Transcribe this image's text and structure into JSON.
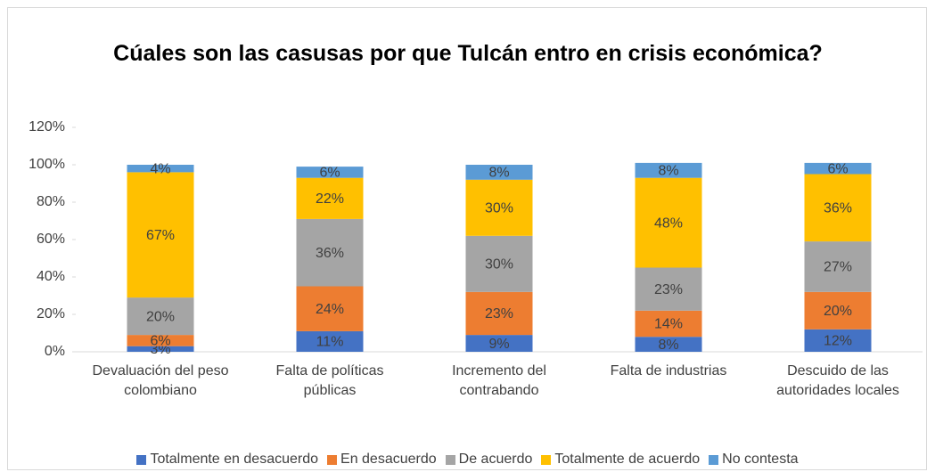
{
  "chart_data": {
    "type": "stacked_bar",
    "title": "Cúales son las casusas por que Tulcán entro en crisis económica?",
    "categories": [
      "Devaluación del peso colombiano",
      "Falta de políticas públicas",
      "Incremento del contrabando",
      "Falta de industrias",
      "Descuido de las autoridades locales"
    ],
    "series": [
      {
        "name": "Totalmente en desacuerdo",
        "color": "#4472c4",
        "values": [
          3,
          11,
          9,
          8,
          12
        ],
        "value_labels": [
          "3%",
          "11%",
          "9%",
          "8%",
          "12%"
        ]
      },
      {
        "name": "En desacuerdo",
        "color": "#ed7d31",
        "values": [
          6,
          24,
          23,
          14,
          20
        ],
        "value_labels": [
          "6%",
          "24%",
          "23%",
          "14%",
          "20%"
        ]
      },
      {
        "name": "De acuerdo",
        "color": "#a5a5a5",
        "values": [
          20,
          36,
          30,
          23,
          27
        ],
        "value_labels": [
          "20%",
          "36%",
          "30%",
          "23%",
          "27%"
        ]
      },
      {
        "name": "Totalmente de acuerdo",
        "color": "#ffc000",
        "values": [
          67,
          22,
          30,
          48,
          36
        ],
        "value_labels": [
          "67%",
          "22%",
          "30%",
          "48%",
          "36%"
        ]
      },
      {
        "name": "No contesta",
        "color": "#5b9bd5",
        "values": [
          4,
          6,
          8,
          8,
          6
        ],
        "value_labels": [
          "4%",
          "6%",
          "8%",
          "8%",
          "6%"
        ]
      }
    ],
    "ylim": [
      0,
      120
    ],
    "yticks": [
      {
        "value": 0,
        "label": "0%"
      },
      {
        "value": 20,
        "label": "20%"
      },
      {
        "value": 40,
        "label": "40%"
      },
      {
        "value": 60,
        "label": "60%"
      },
      {
        "value": 80,
        "label": "80%"
      },
      {
        "value": 100,
        "label": "100%"
      },
      {
        "value": 120,
        "label": "120%"
      }
    ],
    "legend": "bottom"
  }
}
